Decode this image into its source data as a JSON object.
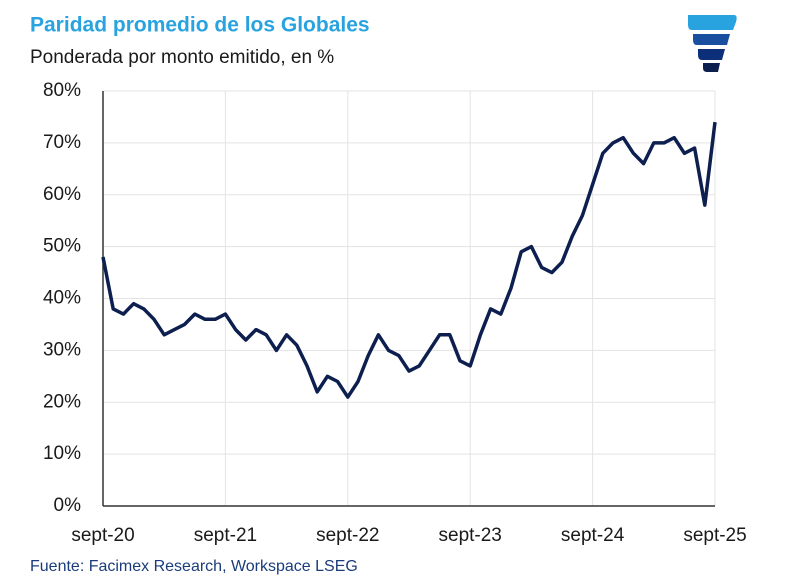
{
  "chart_data": {
    "type": "line",
    "title": "Paridad promedio de los Globales",
    "subtitle": "Ponderada por monto emitido, en %",
    "source": "Fuente: Facimex Research, Workspace LSEG",
    "x": [
      "2020-09",
      "2020-10",
      "2020-11",
      "2020-12",
      "2021-01",
      "2021-02",
      "2021-03",
      "2021-04",
      "2021-05",
      "2021-06",
      "2021-07",
      "2021-08",
      "2021-09",
      "2021-10",
      "2021-11",
      "2021-12",
      "2022-01",
      "2022-02",
      "2022-03",
      "2022-04",
      "2022-05",
      "2022-06",
      "2022-07",
      "2022-08",
      "2022-09",
      "2022-10",
      "2022-11",
      "2022-12",
      "2023-01",
      "2023-02",
      "2023-03",
      "2023-04",
      "2023-05",
      "2023-06",
      "2023-07",
      "2023-08",
      "2023-09",
      "2023-10",
      "2023-11",
      "2023-12",
      "2024-01",
      "2024-02",
      "2024-03",
      "2024-04",
      "2024-05",
      "2024-06",
      "2024-07",
      "2024-08",
      "2024-09",
      "2024-10",
      "2024-11",
      "2024-12",
      "2025-01",
      "2025-02",
      "2025-03",
      "2025-04",
      "2025-05",
      "2025-06",
      "2025-07",
      "2025-08",
      "2025-09"
    ],
    "series": [
      {
        "name": "Paridad",
        "color": "#0d1f4f",
        "values": [
          48,
          38,
          37,
          39,
          38,
          36,
          33,
          34,
          35,
          37,
          36,
          36,
          37,
          34,
          32,
          34,
          33,
          30,
          33,
          31,
          27,
          22,
          25,
          24,
          21,
          24,
          29,
          33,
          30,
          29,
          26,
          27,
          30,
          33,
          33,
          28,
          27,
          33,
          38,
          37,
          42,
          49,
          50,
          46,
          45,
          47,
          52,
          56,
          62,
          68,
          70,
          71,
          68,
          66,
          70,
          70,
          71,
          68,
          69,
          58,
          74
        ]
      }
    ],
    "xlim": [
      "2020-09",
      "2025-09"
    ],
    "xticks": [
      {
        "value": "2020-09",
        "label": "sept-20"
      },
      {
        "value": "2021-09",
        "label": "sept-21"
      },
      {
        "value": "2022-09",
        "label": "sept-22"
      },
      {
        "value": "2023-09",
        "label": "sept-23"
      },
      {
        "value": "2024-09",
        "label": "sept-24"
      },
      {
        "value": "2025-09",
        "label": "sept-25"
      }
    ],
    "ylim": [
      0,
      80
    ],
    "yticks": [
      {
        "value": 0,
        "label": "0%"
      },
      {
        "value": 10,
        "label": "10%"
      },
      {
        "value": 20,
        "label": "20%"
      },
      {
        "value": 30,
        "label": "30%"
      },
      {
        "value": 40,
        "label": "40%"
      },
      {
        "value": 50,
        "label": "50%"
      },
      {
        "value": 60,
        "label": "60%"
      },
      {
        "value": 70,
        "label": "70%"
      },
      {
        "value": 80,
        "label": "80%"
      }
    ],
    "grid": true
  }
}
